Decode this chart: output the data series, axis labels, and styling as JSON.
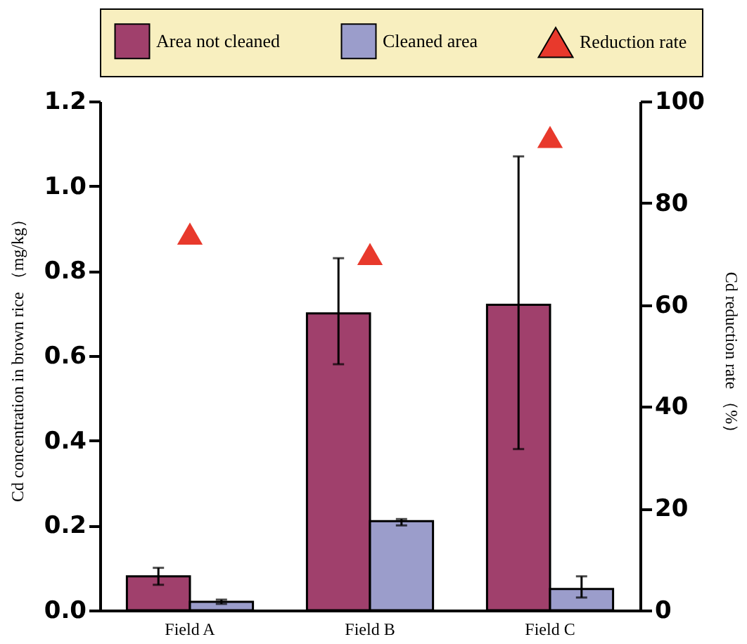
{
  "chart_data": {
    "type": "bar",
    "categories": [
      "Field A",
      "Field B",
      "Field C"
    ],
    "ylabel": "Cd concentration in brown rice （mg/kg）",
    "y2label": "Cd reduction rate （%）",
    "ylim": [
      0,
      1.2
    ],
    "yticks": [
      {
        "value": 0,
        "label": "0.0"
      },
      0.2,
      0.4,
      0.6,
      0.8,
      {
        "value": 1,
        "label": "1.0"
      },
      1.2
    ],
    "y2lim": [
      0,
      100
    ],
    "y2ticks": [
      0,
      20,
      40,
      60,
      80,
      100
    ],
    "legend": "top",
    "grid": false,
    "series": [
      {
        "name": "Area not cleaned",
        "color": "#a0406c",
        "values": [
          0.08,
          0.7,
          0.72
        ],
        "errors": [
          [
            0.06,
            0.1
          ],
          [
            0.58,
            0.83
          ],
          [
            0.38,
            1.07
          ]
        ]
      },
      {
        "name": "Cleaned area",
        "color": "#9b9dcb",
        "values": [
          0.02,
          0.21,
          0.05
        ],
        "errors": [
          [
            0.015,
            0.025
          ],
          [
            0.2,
            0.215
          ],
          [
            0.03,
            0.08
          ]
        ]
      },
      {
        "name": "Reduction rate",
        "type": "scatter",
        "axis": "y2",
        "marker": "triangle",
        "color": "#e8392c",
        "values": [
          74,
          70,
          93
        ]
      }
    ]
  }
}
